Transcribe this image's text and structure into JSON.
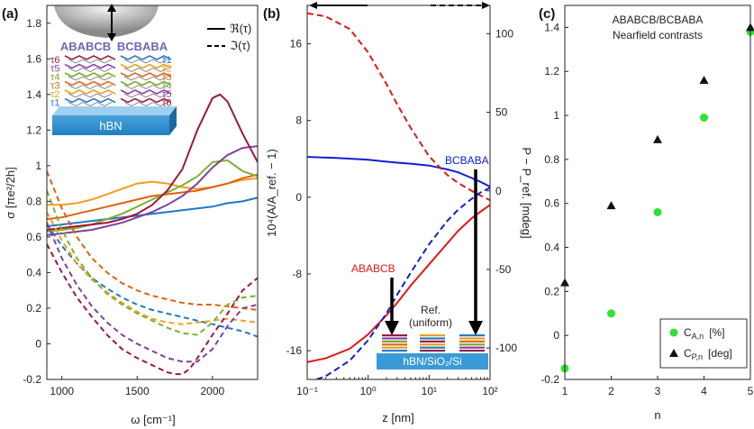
{
  "chart_data": [
    {
      "id": "a",
      "panel_label": "(a)",
      "type": "line",
      "xlabel": "ω [cm⁻¹]",
      "ylabel": "σ [πe²/2h]",
      "xlim": [
        900,
        2300
      ],
      "ylim": [
        -0.2,
        1.9
      ],
      "xticks": [
        1000,
        1500,
        2000
      ],
      "yticks": [
        -0.2,
        0,
        0.2,
        0.4,
        0.6,
        0.8,
        1,
        1.2,
        1.4,
        1.6,
        1.8
      ],
      "legend": [
        {
          "label": "ℜ(τ)",
          "style": "solid"
        },
        {
          "label": "ℑ(τ)",
          "style": "dashed"
        }
      ],
      "inset": {
        "left_stack": "ABABCB",
        "right_stack": "BCBABA",
        "substrate": "hBN",
        "left_taus": [
          "τ6",
          "τ5",
          "τ4",
          "τ3",
          "τ2",
          "τ1"
        ],
        "right_taus": [
          "τ1",
          "τ2",
          "τ3",
          "τ4",
          "τ5",
          "τ6"
        ]
      },
      "series": [
        {
          "name": "τ1",
          "color": "#1f77c4",
          "part": "real",
          "x": [
            900,
            1000,
            1100,
            1200,
            1300,
            1400,
            1500,
            1600,
            1700,
            1800,
            1900,
            2000,
            2100,
            2200,
            2300
          ],
          "y": [
            0.66,
            0.67,
            0.68,
            0.69,
            0.7,
            0.71,
            0.72,
            0.73,
            0.74,
            0.75,
            0.76,
            0.77,
            0.79,
            0.8,
            0.82
          ]
        },
        {
          "name": "τ2",
          "color": "#f0a020",
          "part": "real",
          "x": [
            900,
            1000,
            1100,
            1200,
            1300,
            1400,
            1500,
            1600,
            1700,
            1800,
            1900,
            2000,
            2100,
            2200,
            2300
          ],
          "y": [
            0.78,
            0.78,
            0.79,
            0.81,
            0.84,
            0.87,
            0.9,
            0.91,
            0.9,
            0.88,
            0.87,
            0.88,
            0.9,
            0.92,
            0.93
          ]
        },
        {
          "name": "τ3",
          "color": "#e06010",
          "part": "real",
          "x": [
            900,
            1000,
            1100,
            1200,
            1300,
            1400,
            1500,
            1600,
            1700,
            1800,
            1900,
            2000,
            2100,
            2200,
            2300
          ],
          "y": [
            0.7,
            0.71,
            0.73,
            0.75,
            0.77,
            0.79,
            0.81,
            0.83,
            0.84,
            0.85,
            0.86,
            0.88,
            0.9,
            0.93,
            0.95
          ]
        },
        {
          "name": "τ4",
          "color": "#80b030",
          "part": "real",
          "x": [
            900,
            1000,
            1100,
            1200,
            1300,
            1400,
            1500,
            1600,
            1700,
            1800,
            1900,
            2000,
            2100,
            2200,
            2300
          ],
          "y": [
            0.63,
            0.64,
            0.65,
            0.67,
            0.7,
            0.73,
            0.77,
            0.81,
            0.85,
            0.89,
            0.94,
            1.02,
            1.03,
            0.97,
            0.94
          ]
        },
        {
          "name": "τ5",
          "color": "#8040a0",
          "part": "real",
          "x": [
            900,
            1000,
            1100,
            1200,
            1300,
            1400,
            1500,
            1600,
            1700,
            1800,
            1900,
            2000,
            2100,
            2200,
            2300
          ],
          "y": [
            0.61,
            0.62,
            0.63,
            0.64,
            0.66,
            0.68,
            0.71,
            0.74,
            0.78,
            0.83,
            0.9,
            0.99,
            1.06,
            1.1,
            1.11
          ]
        },
        {
          "name": "τ6",
          "color": "#a01838",
          "part": "real",
          "x": [
            900,
            1000,
            1100,
            1200,
            1300,
            1400,
            1500,
            1600,
            1700,
            1800,
            1900,
            2000,
            2050,
            2100,
            2200,
            2300
          ],
          "y": [
            0.64,
            0.65,
            0.66,
            0.67,
            0.68,
            0.7,
            0.73,
            0.78,
            0.86,
            0.98,
            1.2,
            1.38,
            1.4,
            1.36,
            1.18,
            1.02
          ]
        },
        {
          "name": "τ1",
          "color": "#1f77c4",
          "part": "imag",
          "x": [
            900,
            1000,
            1100,
            1200,
            1300,
            1400,
            1500,
            1600,
            1700,
            1800,
            1900,
            2000,
            2100,
            2200,
            2300
          ],
          "y": [
            0.67,
            0.55,
            0.45,
            0.37,
            0.31,
            0.26,
            0.22,
            0.19,
            0.17,
            0.15,
            0.13,
            0.11,
            0.09,
            0.07,
            0.04
          ]
        },
        {
          "name": "τ2",
          "color": "#f0a020",
          "part": "imag",
          "x": [
            900,
            1000,
            1100,
            1200,
            1300,
            1400,
            1500,
            1600,
            1700,
            1800,
            1900,
            2000,
            2100,
            2200,
            2300
          ],
          "y": [
            0.74,
            0.58,
            0.45,
            0.36,
            0.29,
            0.23,
            0.18,
            0.14,
            0.12,
            0.11,
            0.12,
            0.13,
            0.14,
            0.13,
            0.12
          ]
        },
        {
          "name": "τ3",
          "color": "#e06010",
          "part": "imag",
          "x": [
            900,
            1000,
            1100,
            1200,
            1300,
            1400,
            1500,
            1600,
            1700,
            1800,
            1900,
            2000,
            2100,
            2200,
            2300
          ],
          "y": [
            0.97,
            0.76,
            0.6,
            0.48,
            0.4,
            0.34,
            0.3,
            0.27,
            0.25,
            0.23,
            0.22,
            0.22,
            0.21,
            0.2,
            0.19
          ]
        },
        {
          "name": "τ4",
          "color": "#80b030",
          "part": "imag",
          "x": [
            900,
            1000,
            1100,
            1200,
            1300,
            1400,
            1500,
            1600,
            1700,
            1800,
            1900,
            2000,
            2100,
            2200,
            2300
          ],
          "y": [
            0.86,
            0.64,
            0.48,
            0.37,
            0.28,
            0.22,
            0.17,
            0.13,
            0.09,
            0.06,
            0.05,
            0.12,
            0.22,
            0.26,
            0.27
          ]
        },
        {
          "name": "τ5",
          "color": "#8040a0",
          "part": "imag",
          "x": [
            900,
            1000,
            1100,
            1200,
            1300,
            1400,
            1500,
            1600,
            1700,
            1800,
            1900,
            2000,
            2100,
            2200,
            2300
          ],
          "y": [
            0.68,
            0.48,
            0.33,
            0.21,
            0.12,
            0.05,
            0.0,
            -0.04,
            -0.08,
            -0.1,
            -0.1,
            -0.03,
            0.1,
            0.2,
            0.22
          ]
        },
        {
          "name": "τ6",
          "color": "#a01838",
          "part": "imag",
          "x": [
            900,
            1000,
            1100,
            1200,
            1300,
            1400,
            1500,
            1600,
            1700,
            1750,
            1800,
            1850,
            1900,
            2000,
            2100,
            2200,
            2300
          ],
          "y": [
            0.56,
            0.4,
            0.26,
            0.15,
            0.05,
            -0.03,
            -0.08,
            -0.12,
            -0.16,
            -0.17,
            -0.17,
            -0.14,
            -0.08,
            0.05,
            0.17,
            0.3,
            0.37
          ]
        }
      ]
    },
    {
      "id": "b",
      "panel_label": "(b)",
      "type": "line",
      "xscale": "log",
      "xlabel": "z [nm]",
      "ylabel_left": "10⁴(A/A_ref. − 1)",
      "ylabel_right": "P − P_ref. [mdeg]",
      "xlim": [
        0.1,
        100
      ],
      "ylim_left": [
        -19,
        20
      ],
      "ylim_right": [
        -120,
        118
      ],
      "xticks": [
        0.1,
        1,
        10,
        100
      ],
      "xtick_labels": [
        "10⁻¹",
        "10⁰",
        "10¹",
        "10²"
      ],
      "yticks_left": [
        -16,
        -8,
        0,
        8,
        16
      ],
      "yticks_right": [
        -100,
        -50,
        0,
        50,
        100
      ],
      "annotations": {
        "bcbaba": "BCBABA",
        "ababcb": "ABABCB",
        "ref_line1": "Ref.",
        "ref_line2": "(uniform)",
        "substrate": "hBN/SiO₂/Si"
      },
      "series": [
        {
          "name": "BCBABA amplitude (solid blue)",
          "color": "#1020d0",
          "axis": "left",
          "style": "solid",
          "x": [
            0.1,
            0.3,
            1,
            2,
            3,
            5,
            10,
            20,
            30,
            50,
            70,
            100
          ],
          "y": [
            4.2,
            4.1,
            3.9,
            3.7,
            3.6,
            3.5,
            3.3,
            2.9,
            2.6,
            2.0,
            1.6,
            1.1
          ]
        },
        {
          "name": "ABABCB amplitude (solid red)",
          "color": "#e01818",
          "axis": "left",
          "style": "solid",
          "x": [
            0.1,
            0.2,
            0.5,
            1,
            2,
            3,
            5,
            10,
            20,
            30,
            50,
            70,
            100
          ],
          "y": [
            -17.2,
            -16.8,
            -15.8,
            -14.3,
            -12.3,
            -11.0,
            -9.2,
            -7.0,
            -4.8,
            -3.5,
            -2.2,
            -1.5,
            -0.8
          ]
        },
        {
          "name": "ABABCB phase (dashed red)",
          "color": "#e01818",
          "axis": "right",
          "style": "dashed",
          "x": [
            0.1,
            0.2,
            0.5,
            1,
            2,
            3,
            5,
            10,
            20,
            30,
            50,
            70,
            100
          ],
          "y": [
            113,
            111,
            103,
            88,
            68,
            55,
            40,
            22,
            10,
            5,
            0,
            -3,
            -6
          ]
        },
        {
          "name": "BCBABA phase (dashed blue)",
          "color": "#1020d0",
          "axis": "right",
          "style": "dashed",
          "x": [
            0.1,
            0.2,
            0.5,
            1,
            2,
            3,
            5,
            10,
            20,
            30,
            50,
            70,
            100
          ],
          "y": [
            -122,
            -118,
            -108,
            -95,
            -78,
            -66,
            -52,
            -34,
            -19,
            -12,
            -5,
            -1,
            2
          ]
        }
      ]
    },
    {
      "id": "c",
      "panel_label": "(c)",
      "type": "scatter",
      "title_line1": "ABABCB/BCBABA",
      "title_line2": "Nearfield contrasts",
      "xlabel": "n",
      "xlim": [
        1,
        5
      ],
      "ylim": [
        -0.2,
        1.5
      ],
      "xticks": [
        1,
        2,
        3,
        4,
        5
      ],
      "yticks": [
        -0.2,
        0,
        0.2,
        0.4,
        0.6,
        0.8,
        1,
        1.2,
        1.4
      ],
      "series": [
        {
          "name": "C_A,n [%]",
          "legend_main": "C",
          "legend_sub": "A,n",
          "legend_unit": "[%]",
          "marker": "circle",
          "color": "#33e033",
          "x": [
            1,
            2,
            3,
            4,
            5
          ],
          "y": [
            -0.15,
            0.1,
            0.56,
            0.99,
            1.38
          ]
        },
        {
          "name": "C_P,n [deg]",
          "legend_main": "C",
          "legend_sub": "P,n",
          "legend_unit": "[deg]",
          "marker": "triangle",
          "color": "#111111",
          "x": [
            1,
            2,
            3,
            4,
            5
          ],
          "y": [
            0.24,
            0.59,
            0.89,
            1.16,
            1.4
          ]
        }
      ]
    }
  ]
}
